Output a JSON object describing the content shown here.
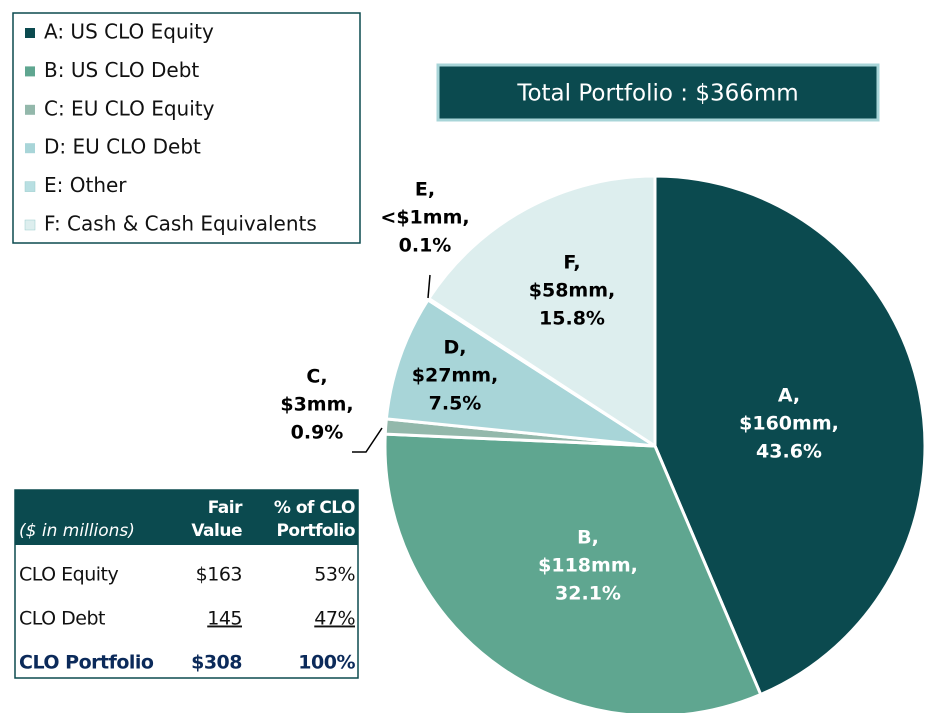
{
  "chart_data": {
    "type": "pie",
    "title": "Total Portfolio : $366mm",
    "categories": [
      "A,",
      "B,",
      "C,",
      "D,",
      "E,",
      "F,"
    ],
    "amount_labels": [
      "$160mm,",
      "$118mm,",
      "$3mm,",
      "$27mm,",
      "<$1mm,",
      "$58mm,"
    ],
    "values": [
      43.6,
      32.1,
      0.9,
      7.5,
      0.1,
      15.8
    ],
    "value_labels": [
      "43.6%",
      "32.1%",
      "0.9%",
      "7.5%",
      "0.1%",
      "15.8%"
    ],
    "colors": [
      "#0b4a4f",
      "#5fa690",
      "#93b8ab",
      "#a8d5d8",
      "#b8dfe2",
      "#ddeeee"
    ],
    "legend": [
      "A: US CLO Equity",
      "B: US CLO Debt",
      "C: EU CLO Equity",
      "D: EU CLO Debt",
      "E: Other",
      "F: Cash & Cash Equivalents"
    ],
    "legend_position": "upper left"
  },
  "table": {
    "header": [
      [
        "($ in millions)"
      ],
      [
        "Fair",
        "Value"
      ],
      [
        "% of CLO",
        "Portfolio"
      ]
    ],
    "rows": [
      [
        "CLO Equity",
        "$163",
        "53%"
      ],
      [
        "CLO Debt",
        "145",
        "47%"
      ],
      [
        "CLO Portfolio",
        "$308",
        "100%"
      ]
    ]
  }
}
